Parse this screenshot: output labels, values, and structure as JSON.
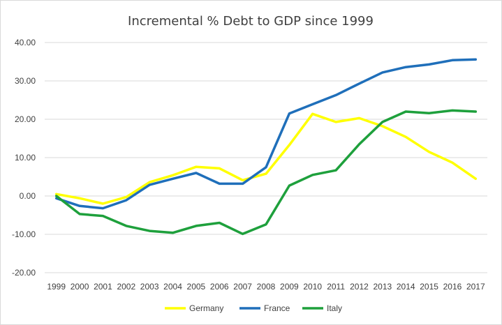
{
  "chart_data": {
    "type": "line",
    "title": "Incremental % Debt to GDP since 1999",
    "xlabel": "",
    "ylabel": "",
    "categories": [
      "1999",
      "2000",
      "2001",
      "2002",
      "2003",
      "2004",
      "2005",
      "2006",
      "2007",
      "2008",
      "2009",
      "2010",
      "2011",
      "2012",
      "2013",
      "2014",
      "2015",
      "2016",
      "2017"
    ],
    "ylim": [
      -20,
      40
    ],
    "yticks": [
      "-20.00",
      "-10.00",
      "0.00",
      "10.00",
      "20.00",
      "30.00",
      "40.00"
    ],
    "grid": true,
    "legend_position": "bottom",
    "series": [
      {
        "name": "Germany",
        "color": "#ffff00",
        "values": [
          0.5,
          -0.6,
          -2.0,
          -0.3,
          3.6,
          5.4,
          7.6,
          7.2,
          4.1,
          5.8,
          13.3,
          21.4,
          19.3,
          20.3,
          18.2,
          15.4,
          11.5,
          8.7,
          4.5
        ]
      },
      {
        "name": "France",
        "color": "#1f6fba",
        "values": [
          -0.6,
          -2.6,
          -3.2,
          -1.1,
          2.9,
          4.5,
          6.0,
          3.2,
          3.2,
          7.5,
          21.5,
          23.9,
          26.3,
          29.3,
          32.2,
          33.6,
          34.3,
          35.4,
          35.6
        ]
      },
      {
        "name": "Italy",
        "color": "#1ea03c",
        "values": [
          0.0,
          -4.7,
          -5.2,
          -7.8,
          -9.1,
          -9.6,
          -7.8,
          -7.0,
          -9.9,
          -7.4,
          2.7,
          5.5,
          6.7,
          13.5,
          19.3,
          22.0,
          21.6,
          22.3,
          22.0
        ]
      }
    ]
  }
}
